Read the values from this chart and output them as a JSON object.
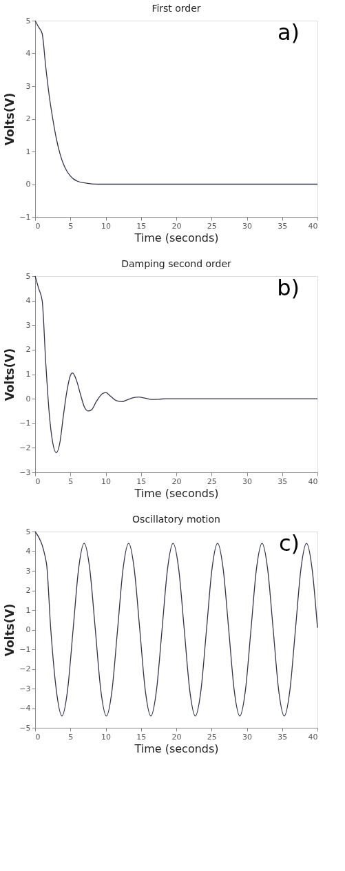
{
  "chart_data": [
    {
      "type": "line",
      "title": "First order",
      "xlabel": "Time (seconds)",
      "ylabel": "Volts(V)",
      "annotations": [
        "a)"
      ],
      "xlim": [
        0,
        40
      ],
      "ylim": [
        -1,
        5
      ],
      "xticks": [
        0,
        5,
        10,
        15,
        20,
        25,
        30,
        35,
        40
      ],
      "yticks": [
        -1,
        0,
        1,
        2,
        3,
        4,
        5
      ],
      "grid": false,
      "x": [
        0,
        0.5,
        1,
        1.5,
        2,
        2.5,
        3,
        3.5,
        4,
        4.5,
        5,
        5.5,
        6,
        7,
        8,
        9,
        20,
        30,
        40
      ],
      "series": [
        {
          "color": "#33334d",
          "values": [
            5,
            4.8,
            4.6,
            3.6,
            2.7,
            2.0,
            1.4,
            0.95,
            0.62,
            0.4,
            0.25,
            0.15,
            0.09,
            0.04,
            0.01,
            0,
            0,
            0,
            0
          ]
        }
      ]
    },
    {
      "type": "line",
      "title": "Damping  second order",
      "xlabel": "Time (seconds)",
      "ylabel": "Volts(V)",
      "annotations": [
        "b)"
      ],
      "xlim": [
        0,
        40
      ],
      "ylim": [
        -3,
        5
      ],
      "xticks": [
        0,
        5,
        10,
        15,
        20,
        25,
        30,
        35,
        40
      ],
      "yticks": [
        -3,
        -2,
        -1,
        0,
        1,
        2,
        3,
        4,
        5
      ],
      "grid": false,
      "x": [
        0,
        0.5,
        1,
        1.5,
        2,
        2.5,
        3,
        3.5,
        4,
        4.5,
        5,
        5.3,
        5.8,
        6.5,
        7,
        7.5,
        8,
        8.7,
        9.5,
        10,
        10.7,
        11.5,
        12.3,
        13,
        14,
        14.7,
        15.5,
        16.5,
        17.5,
        18.5,
        25,
        40
      ],
      "series": [
        {
          "color": "#33334d",
          "values": [
            5,
            4.5,
            4,
            1.5,
            -0.6,
            -1.8,
            -2.2,
            -1.8,
            -0.7,
            0.3,
            0.95,
            1.05,
            0.8,
            0.1,
            -0.35,
            -0.5,
            -0.45,
            -0.1,
            0.2,
            0.25,
            0.1,
            -0.08,
            -0.12,
            -0.05,
            0.05,
            0.07,
            0.03,
            -0.03,
            -0.02,
            0,
            0,
            0
          ]
        }
      ]
    },
    {
      "type": "line",
      "title": "Oscillatory motion",
      "xlabel": "Time (seconds)",
      "ylabel": "Volts(V)",
      "annotations": [
        "c)"
      ],
      "xlim": [
        0,
        40
      ],
      "ylim": [
        -5,
        5
      ],
      "xticks": [
        0,
        5,
        10,
        15,
        20,
        25,
        30,
        35,
        40
      ],
      "yticks": [
        -5,
        -4,
        -3,
        -2,
        -1,
        0,
        1,
        2,
        3,
        4,
        5
      ],
      "grid": false,
      "x": [
        0,
        1.6,
        2.22,
        3.01,
        3.8,
        4.59,
        5.38,
        6.16,
        6.95,
        7.74,
        8.53,
        9.31,
        10.1,
        10.89,
        11.68,
        12.46,
        13.25,
        14.04,
        14.83,
        15.61,
        16.4,
        17.19,
        17.98,
        18.76,
        19.55,
        20.34,
        21.13,
        21.91,
        22.7,
        23.49,
        24.28,
        25.06,
        25.85,
        26.64,
        27.43,
        28.21,
        29.0,
        29.79,
        30.58,
        31.36,
        32.15,
        32.94,
        33.73,
        34.51,
        35.3,
        36.09,
        36.88,
        37.66,
        38.45,
        39.24,
        40
      ],
      "series": [
        {
          "color": "#33334d",
          "values": [
            5,
            3.4,
            0,
            -3.1,
            -4.4,
            -3.1,
            0,
            3.1,
            4.4,
            3.1,
            0,
            -3.1,
            -4.4,
            -3.1,
            0,
            3.1,
            4.4,
            3.1,
            0,
            -3.1,
            -4.4,
            -3.1,
            0,
            3.1,
            4.4,
            3.1,
            0,
            -3.1,
            -4.4,
            -3.1,
            0,
            3.1,
            4.4,
            3.1,
            0,
            -3.1,
            -4.4,
            -3.1,
            0,
            3.1,
            4.4,
            3.1,
            0,
            -3.1,
            -4.4,
            -3.1,
            0,
            3.1,
            4.4,
            3.1,
            0.1
          ]
        }
      ]
    }
  ]
}
